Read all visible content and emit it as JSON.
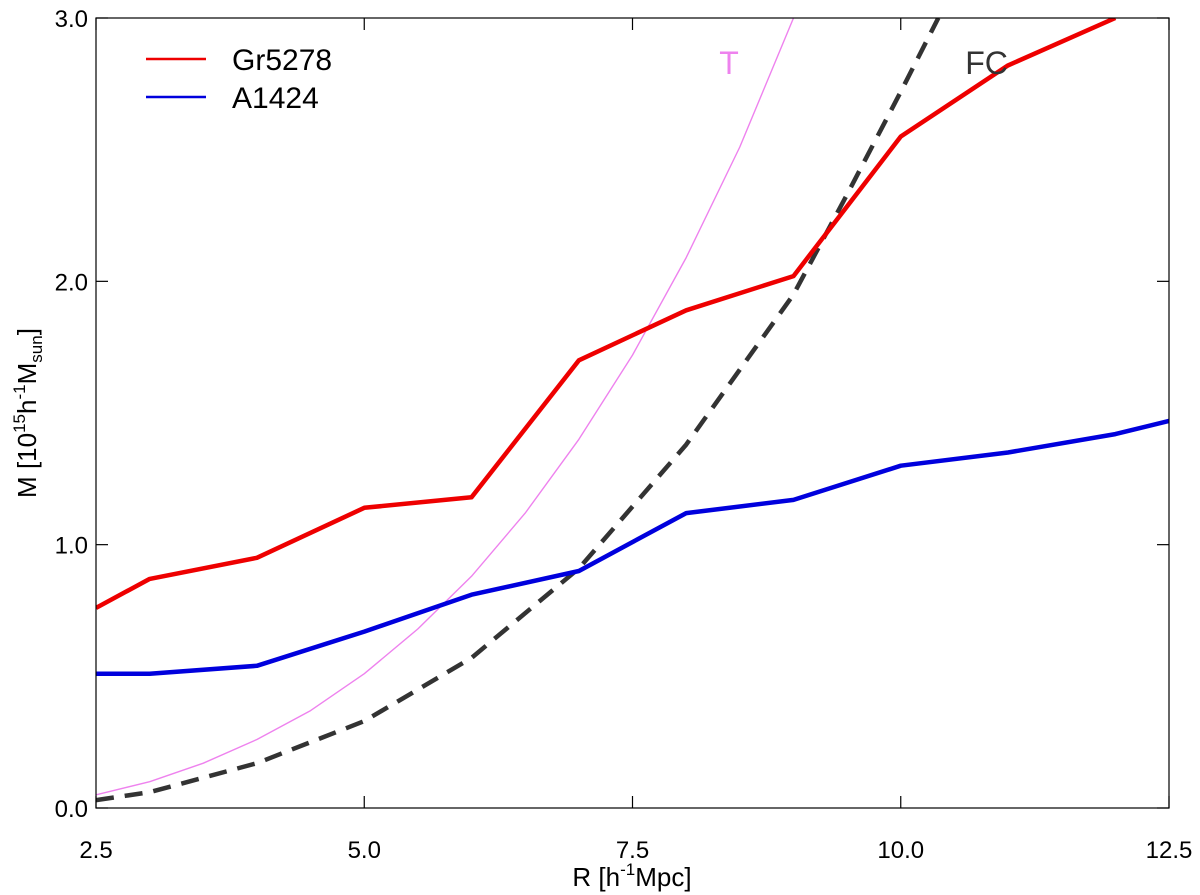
{
  "chart_data": {
    "type": "line",
    "title": "",
    "xlabel": {
      "prefix": "R [h",
      "sup": "-1",
      "suffix": "Mpc]"
    },
    "ylabel": {
      "prefix": "M [10",
      "sup1": "15",
      "mid": "h",
      "sup2": "-1",
      "m": "M",
      "sub": "sun",
      "suffix": "]"
    },
    "xlim": [
      2.5,
      12.5
    ],
    "ylim": [
      0.0,
      3.0
    ],
    "xticks": [
      2.5,
      5.0,
      7.5,
      10.0,
      12.5
    ],
    "xtick_labels": [
      "2.5",
      "5.0",
      "7.5",
      "10.0",
      "12.5"
    ],
    "yticks": [
      0.0,
      1.0,
      2.0,
      3.0
    ],
    "ytick_labels": [
      "0.0",
      "1.0",
      "2.0",
      "3.0"
    ],
    "series": [
      {
        "name": "Gr5278",
        "color": "#ee0000",
        "style": "solid",
        "x": [
          2.5,
          3.0,
          4.0,
          5.0,
          6.0,
          7.0,
          8.0,
          9.0,
          10.0,
          11.0,
          12.0
        ],
        "y": [
          0.76,
          0.87,
          0.95,
          1.14,
          1.18,
          1.7,
          1.89,
          2.02,
          2.55,
          2.82,
          3.0
        ]
      },
      {
        "name": "A1424",
        "color": "#0000dd",
        "style": "solid",
        "x": [
          2.5,
          3.0,
          4.0,
          5.0,
          6.0,
          7.0,
          8.0,
          9.0,
          10.0,
          11.0,
          12.0,
          12.5
        ],
        "y": [
          0.51,
          0.51,
          0.54,
          0.67,
          0.81,
          0.9,
          1.12,
          1.17,
          1.3,
          1.35,
          1.42,
          1.47
        ]
      },
      {
        "name": "T",
        "color": "#ee82ee",
        "style": "thin",
        "x": [
          2.5,
          3.0,
          3.5,
          4.0,
          4.5,
          5.0,
          5.5,
          6.0,
          6.5,
          7.0,
          7.5,
          8.0,
          8.5,
          9.0
        ],
        "y": [
          0.05,
          0.1,
          0.17,
          0.26,
          0.37,
          0.51,
          0.68,
          0.88,
          1.12,
          1.4,
          1.72,
          2.09,
          2.51,
          3.0
        ]
      },
      {
        "name": "FC",
        "color": "#333333",
        "style": "dashed",
        "x": [
          2.5,
          3.0,
          4.0,
          5.0,
          6.0,
          7.0,
          8.0,
          9.0,
          9.5,
          10.0,
          10.35
        ],
        "y": [
          0.03,
          0.06,
          0.17,
          0.33,
          0.57,
          0.91,
          1.38,
          1.95,
          2.33,
          2.72,
          3.0
        ]
      }
    ],
    "legend": [
      {
        "name": "Gr5278",
        "color": "#ee0000"
      },
      {
        "name": "A1424",
        "color": "#0000dd"
      }
    ],
    "annotations": [
      {
        "text": "T",
        "color": "#ee82ee",
        "x": 8.4,
        "y": 2.83
      },
      {
        "text": "FC",
        "color": "#333333",
        "x": 10.8,
        "y": 2.83
      }
    ],
    "legend_position": "top-left",
    "grid": false
  }
}
